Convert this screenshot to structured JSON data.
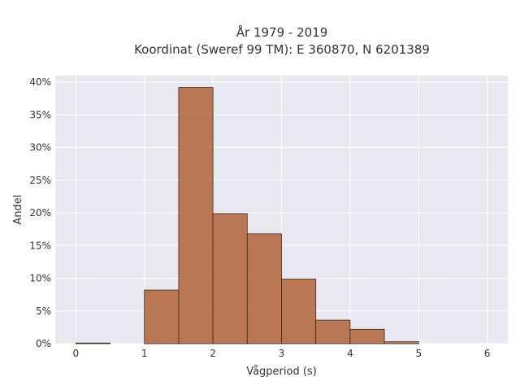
{
  "chart_data": {
    "type": "bar",
    "title_lines": [
      "År 1979 - 2019",
      "Koordinat (Sweref 99 TM): E 360870, N 6201389"
    ],
    "xlabel": "Vågperiod (s)",
    "ylabel": "Andel",
    "xlim": [
      -0.3,
      6.3
    ],
    "ylim": [
      0,
      0.41
    ],
    "x_ticks": [
      0,
      1,
      2,
      3,
      4,
      5,
      6
    ],
    "x_tick_labels": [
      "0",
      "1",
      "2",
      "3",
      "4",
      "5",
      "6"
    ],
    "y_ticks": [
      0,
      0.05,
      0.1,
      0.15,
      0.2,
      0.25,
      0.3,
      0.35,
      0.4
    ],
    "y_tick_labels": [
      "0%",
      "5%",
      "10%",
      "15%",
      "20%",
      "25%",
      "30%",
      "35%",
      "40%"
    ],
    "grid": true,
    "bin_edges": [
      0,
      0.5,
      1,
      1.5,
      2,
      2.5,
      3,
      3.5,
      4,
      4.5,
      5
    ],
    "values": [
      0.001,
      0,
      0.082,
      0.392,
      0.199,
      0.168,
      0.099,
      0.036,
      0.022,
      0.003
    ],
    "bar_color": "#b46a41",
    "plot_background": "#e8e8f0"
  }
}
